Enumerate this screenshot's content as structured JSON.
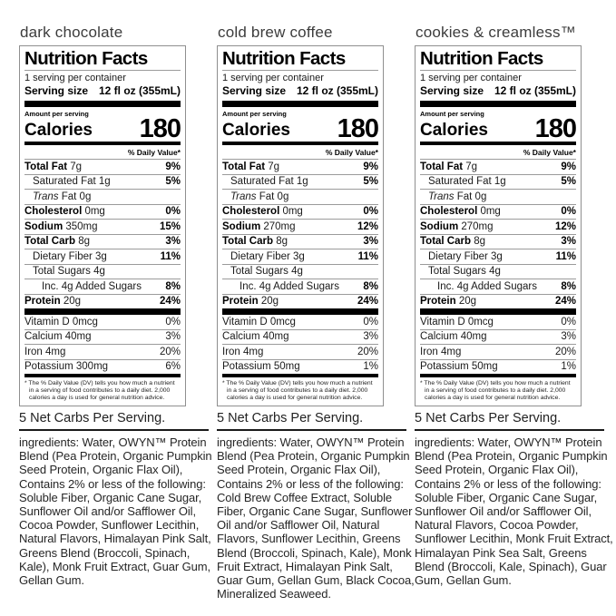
{
  "colors": {
    "background": "#ffffff",
    "text": "#111111",
    "bar": "#000000",
    "hairline": "#9b9b9b",
    "flavor_title": "#3c3c3c"
  },
  "panels": [
    {
      "flavor": "dark chocolate",
      "label": {
        "title": "Nutrition Facts",
        "servings": "1 serving per container",
        "serving_size_label": "Serving size",
        "serving_size_value": "12 fl oz (355mL)",
        "amount_per_serving": "Amount per serving",
        "calories_label": "Calories",
        "calories_value": "180",
        "daily_value_header": "% Daily Value*",
        "rows": [
          {
            "bold": "Total Fat",
            "rest": "7g",
            "dv": "9%",
            "indent": 0,
            "dvBold": true
          },
          {
            "plain": "Saturated Fat",
            "rest": "1g",
            "dv": "5%",
            "indent": 1,
            "dvBold": true
          },
          {
            "italic": "Trans",
            "rest": "Fat 0g",
            "dv": "",
            "indent": 1
          },
          {
            "bold": "Cholesterol",
            "rest": "0mg",
            "dv": "0%",
            "indent": 0,
            "dvBold": true
          },
          {
            "bold": "Sodium",
            "rest": "350mg",
            "dv": "15%",
            "indent": 0,
            "dvBold": true
          },
          {
            "bold": "Total Carb",
            "rest": "8g",
            "dv": "3%",
            "indent": 0,
            "dvBold": true
          },
          {
            "plain": "Dietary Fiber",
            "rest": "3g",
            "dv": "11%",
            "indent": 1,
            "dvBold": true
          },
          {
            "plain": "Total Sugars",
            "rest": "4g",
            "dv": "",
            "indent": 1
          },
          {
            "plain": "Inc. 4g Added Sugars",
            "rest": "",
            "dv": "8%",
            "indent": 2,
            "dvBold": true
          },
          {
            "bold": "Protein",
            "rest": "20g",
            "dv": "24%",
            "indent": 0,
            "dvBold": true
          }
        ],
        "vitamins": [
          {
            "name": "Vitamin D 0mcg",
            "dv": "0%"
          },
          {
            "name": "Calcium 40mg",
            "dv": "3%"
          },
          {
            "name": "Iron 4mg",
            "dv": "20%"
          },
          {
            "name": "Potassium 300mg",
            "dv": "6%"
          }
        ],
        "footnote": "* The % Daily Value (DV) tells you how much a nutrient in a serving of food contributes to a daily diet. 2,000 calories a day is used for general nutrition advice."
      },
      "net_carbs": "5 Net Carbs Per Serving.",
      "ingredients": "ingredients: Water, OWYN™ Protein Blend (Pea Protein, Organic Pumpkin Seed Protein, Organic Flax Oil), Contains 2% or less of the following: Soluble Fiber, Organic Cane Sugar, Sunflower Oil and/or Safflower Oil, Cocoa Powder, Sunflower Lecithin, Natural Flavors, Himalayan Pink Salt, Greens Blend (Broccoli, Spinach, Kale), Monk Fruit Extract, Guar Gum, Gellan Gum."
    },
    {
      "flavor": "cold brew coffee",
      "label": {
        "title": "Nutrition Facts",
        "servings": "1 serving per container",
        "serving_size_label": "Serving size",
        "serving_size_value": "12 fl oz (355mL)",
        "amount_per_serving": "Amount per serving",
        "calories_label": "Calories",
        "calories_value": "180",
        "daily_value_header": "% Daily Value*",
        "rows": [
          {
            "bold": "Total Fat",
            "rest": "7g",
            "dv": "9%",
            "indent": 0,
            "dvBold": true
          },
          {
            "plain": "Saturated Fat",
            "rest": "1g",
            "dv": "5%",
            "indent": 1,
            "dvBold": true
          },
          {
            "italic": "Trans",
            "rest": "Fat 0g",
            "dv": "",
            "indent": 1
          },
          {
            "bold": "Cholesterol",
            "rest": "0mg",
            "dv": "0%",
            "indent": 0,
            "dvBold": true
          },
          {
            "bold": "Sodium",
            "rest": "270mg",
            "dv": "12%",
            "indent": 0,
            "dvBold": true
          },
          {
            "bold": "Total Carb",
            "rest": "8g",
            "dv": "3%",
            "indent": 0,
            "dvBold": true
          },
          {
            "plain": "Dietary Fiber",
            "rest": "3g",
            "dv": "11%",
            "indent": 1,
            "dvBold": true
          },
          {
            "plain": "Total Sugars",
            "rest": "4g",
            "dv": "",
            "indent": 1
          },
          {
            "plain": "Inc. 4g Added Sugars",
            "rest": "",
            "dv": "8%",
            "indent": 2,
            "dvBold": true
          },
          {
            "bold": "Protein",
            "rest": "20g",
            "dv": "24%",
            "indent": 0,
            "dvBold": true
          }
        ],
        "vitamins": [
          {
            "name": "Vitamin D 0mcg",
            "dv": "0%"
          },
          {
            "name": "Calcium 40mg",
            "dv": "3%"
          },
          {
            "name": "Iron 4mg",
            "dv": "20%"
          },
          {
            "name": "Potassium 50mg",
            "dv": "1%"
          }
        ],
        "footnote": "* The % Daily Value (DV) tells you how much a nutrient in a serving of food contributes to a daily diet. 2,000 calories a day is used for general nutrition advice."
      },
      "net_carbs": "5 Net Carbs Per Serving.",
      "ingredients": "ingredients: Water, OWYN™ Protein Blend (Pea Protein, Organic Pumpkin Seed Protein, Organic Flax Oil), Contains 2% or less of the following: Cold Brew Coffee Extract, Soluble Fiber, Organic Cane Sugar, Sunflower Oil and/or Safflower Oil, Natural Flavors, Sunflower Lecithin, Greens Blend (Broccoli, Spinach, Kale), Monk Fruit Extract, Himalayan Pink Salt, Guar Gum, Gellan Gum, Black Cocoa, Mineralized Seaweed."
    },
    {
      "flavor": "cookies & creamless™",
      "label": {
        "title": "Nutrition Facts",
        "servings": "1 serving per container",
        "serving_size_label": "Serving size",
        "serving_size_value": "12 fl oz (355mL)",
        "amount_per_serving": "Amount per serving",
        "calories_label": "Calories",
        "calories_value": "180",
        "daily_value_header": "% Daily Value*",
        "rows": [
          {
            "bold": "Total Fat",
            "rest": "7g",
            "dv": "9%",
            "indent": 0,
            "dvBold": true
          },
          {
            "plain": "Saturated Fat",
            "rest": "1g",
            "dv": "5%",
            "indent": 1,
            "dvBold": true
          },
          {
            "italic": "Trans",
            "rest": "Fat 0g",
            "dv": "",
            "indent": 1
          },
          {
            "bold": "Cholesterol",
            "rest": "0mg",
            "dv": "0%",
            "indent": 0,
            "dvBold": true
          },
          {
            "bold": "Sodium",
            "rest": "270mg",
            "dv": "12%",
            "indent": 0,
            "dvBold": true
          },
          {
            "bold": "Total Carb",
            "rest": "8g",
            "dv": "3%",
            "indent": 0,
            "dvBold": true
          },
          {
            "plain": "Dietary Fiber",
            "rest": "3g",
            "dv": "11%",
            "indent": 1,
            "dvBold": true
          },
          {
            "plain": "Total Sugars",
            "rest": "4g",
            "dv": "",
            "indent": 1
          },
          {
            "plain": "Inc. 4g Added Sugars",
            "rest": "",
            "dv": "8%",
            "indent": 2,
            "dvBold": true
          },
          {
            "bold": "Protein",
            "rest": "20g",
            "dv": "24%",
            "indent": 0,
            "dvBold": true
          }
        ],
        "vitamins": [
          {
            "name": "Vitamin D 0mcg",
            "dv": "0%"
          },
          {
            "name": "Calcium 40mg",
            "dv": "3%"
          },
          {
            "name": "Iron 4mg",
            "dv": "20%"
          },
          {
            "name": "Potassium 50mg",
            "dv": "1%"
          }
        ],
        "footnote": "* The % Daily Value (DV) tells you how much a nutrient in a serving of food contributes to a daily diet. 2,000 calories a day is used for general nutrition advice."
      },
      "net_carbs": "5 Net Carbs Per Serving.",
      "ingredients": "ingredients: Water, OWYN™ Protein Blend (Pea Protein, Organic Pumpkin Seed Protein, Organic Flax Oil), Contains 2% or less of the following: Soluble Fiber, Organic Cane Sugar, Sunflower Oil and/or Safflower Oil, Natural Flavors, Cocoa Powder, Sunflower Lecithin, Monk Fruit Extract, Himalayan Pink Sea Salt, Greens Blend (Broccoli, Kale, Spinach), Guar Gum, Gellan Gum."
    }
  ]
}
